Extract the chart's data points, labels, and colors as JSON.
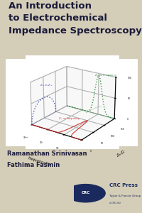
{
  "bg_color": "#d4cdb8",
  "title_lines": [
    "An Introduction",
    "to Electrochemical",
    "Impedance Spectroscopy"
  ],
  "title_color": "#1a1a3a",
  "title_fontsize": 9.5,
  "authors": [
    "Ramanathan Srinivasan",
    "Fathima Fasmin"
  ],
  "author_color": "#1a1a3a",
  "author_fontsize": 6.0,
  "crc_color": "#1a2a5e",
  "plot_bg": "#ffffff",
  "blue_color": "#3344aa",
  "green_color": "#228833",
  "red_color": "#cc2222",
  "gray_color": "#888888"
}
